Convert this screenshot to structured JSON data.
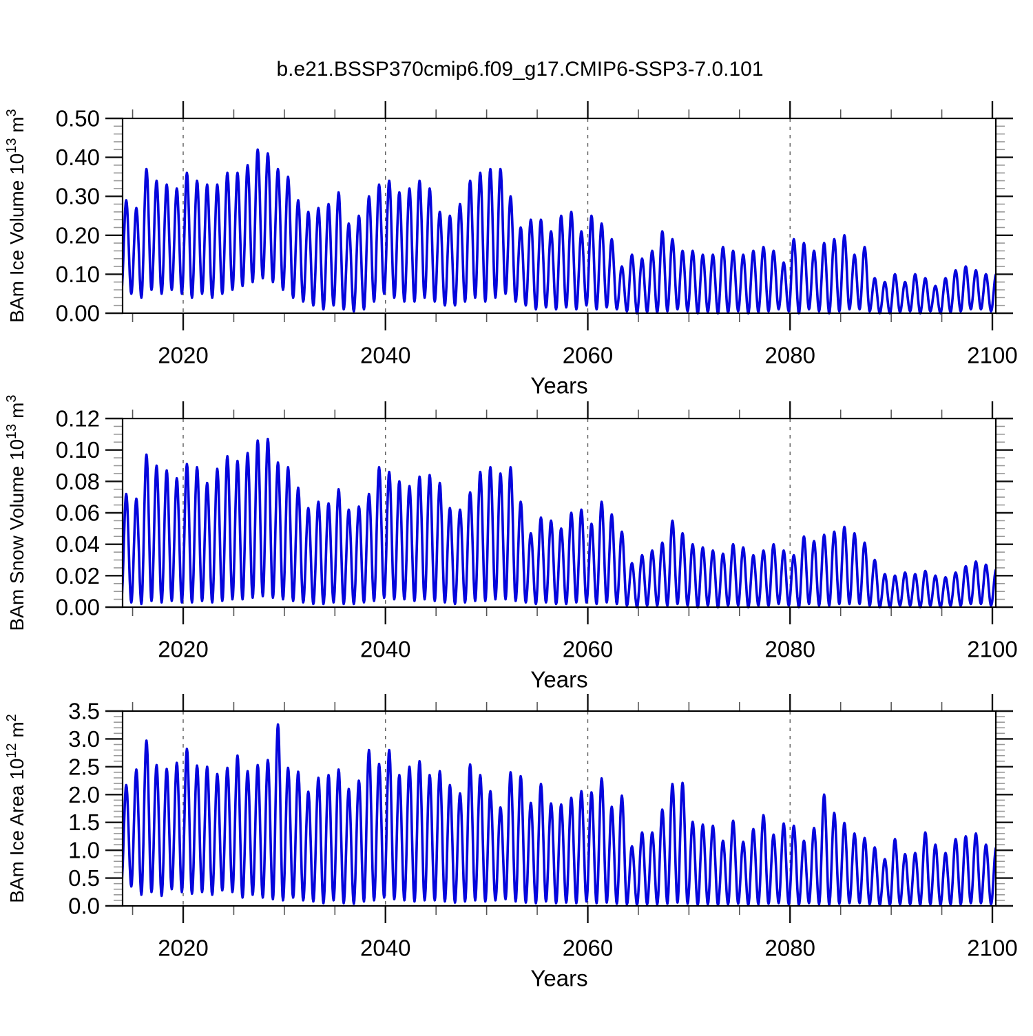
{
  "title": "b.e21.BSSP370cmip6.f09_g17.CMIP6-SSP3-7.0.101",
  "line_color": "#0505DC",
  "gridline_color": "#5a5a5a",
  "chart_data": [
    {
      "type": "line",
      "name": "ice-volume",
      "title": "BAm Ice Volume 10^13 m^3",
      "ylabel_segments": [
        [
          "BAm Ice Volume 10",
          "n"
        ],
        [
          "13",
          "s"
        ],
        [
          " m",
          "n"
        ],
        [
          "3",
          "s"
        ]
      ],
      "ylim": [
        0.0,
        0.5
      ],
      "y_ticks": [
        0.0,
        0.1,
        0.2,
        0.3,
        0.4,
        0.5
      ],
      "y_tick_labels": [
        "0.00",
        "0.10",
        "0.20",
        "0.30",
        "0.40",
        "0.50"
      ],
      "y_minor_step": 0.02,
      "x": {
        "label": "Years",
        "lim": [
          2014.0,
          2100.35
        ],
        "ticks": [
          2020,
          2040,
          2060,
          2080,
          2100
        ],
        "tick_labels": [
          "2020",
          "2040",
          "2060",
          "2080",
          "2100"
        ],
        "minor_step": 5,
        "gridlines": [
          2020,
          2040,
          2060,
          2080
        ],
        "grid_style": "dashed"
      },
      "series": {
        "description": "monthly seasonal cycle; spring maxima and autumn minima per year",
        "years": [
          2014,
          2015,
          2016,
          2017,
          2018,
          2019,
          2020,
          2021,
          2022,
          2023,
          2024,
          2025,
          2026,
          2027,
          2028,
          2029,
          2030,
          2031,
          2032,
          2033,
          2034,
          2035,
          2036,
          2037,
          2038,
          2039,
          2040,
          2041,
          2042,
          2043,
          2044,
          2045,
          2046,
          2047,
          2048,
          2049,
          2050,
          2051,
          2052,
          2053,
          2054,
          2055,
          2056,
          2057,
          2058,
          2059,
          2060,
          2061,
          2062,
          2063,
          2064,
          2065,
          2066,
          2067,
          2068,
          2069,
          2070,
          2071,
          2072,
          2073,
          2074,
          2075,
          2076,
          2077,
          2078,
          2079,
          2080,
          2081,
          2082,
          2083,
          2084,
          2085,
          2086,
          2087,
          2088,
          2089,
          2090,
          2091,
          2092,
          2093,
          2094,
          2095,
          2096,
          2097,
          2098,
          2099,
          2100
        ],
        "spring_max": [
          0.29,
          0.27,
          0.37,
          0.34,
          0.33,
          0.32,
          0.36,
          0.34,
          0.33,
          0.33,
          0.36,
          0.36,
          0.38,
          0.42,
          0.41,
          0.37,
          0.35,
          0.29,
          0.26,
          0.27,
          0.28,
          0.31,
          0.23,
          0.25,
          0.3,
          0.33,
          0.34,
          0.31,
          0.32,
          0.34,
          0.32,
          0.26,
          0.25,
          0.28,
          0.34,
          0.36,
          0.37,
          0.37,
          0.3,
          0.22,
          0.24,
          0.24,
          0.21,
          0.25,
          0.26,
          0.21,
          0.25,
          0.23,
          0.19,
          0.12,
          0.15,
          0.14,
          0.16,
          0.21,
          0.19,
          0.16,
          0.16,
          0.15,
          0.15,
          0.17,
          0.16,
          0.15,
          0.16,
          0.17,
          0.16,
          0.13,
          0.19,
          0.18,
          0.16,
          0.18,
          0.19,
          0.2,
          0.15,
          0.17,
          0.09,
          0.08,
          0.1,
          0.08,
          0.1,
          0.09,
          0.07,
          0.09,
          0.11,
          0.12,
          0.11,
          0.1,
          0.1
        ],
        "autumn_min": [
          0.05,
          0.04,
          0.06,
          0.05,
          0.06,
          0.05,
          0.04,
          0.05,
          0.04,
          0.05,
          0.06,
          0.07,
          0.08,
          0.09,
          0.08,
          0.06,
          0.04,
          0.03,
          0.02,
          0.01,
          0.02,
          0.01,
          0.005,
          0.01,
          0.03,
          0.05,
          0.04,
          0.03,
          0.03,
          0.04,
          0.03,
          0.02,
          0.02,
          0.03,
          0.04,
          0.03,
          0.04,
          0.05,
          0.03,
          0.02,
          0.01,
          0.015,
          0.01,
          0.015,
          0.01,
          0.02,
          0.01,
          0.015,
          0.01,
          0.005,
          0.0,
          0.003,
          0.002,
          0.005,
          0.01,
          0.005,
          0.0,
          0.003,
          0.0,
          0.002,
          0.005,
          0.0,
          0.003,
          0.005,
          0.01,
          0.005,
          0.0,
          0.01,
          0.005,
          0.0,
          0.005,
          0.01,
          0.01,
          0.005,
          0.0,
          0.0,
          0.003,
          0.005,
          0.0,
          0.005,
          0.0,
          0.003,
          0.005,
          0.01,
          0.01,
          0.005,
          0.01
        ]
      }
    },
    {
      "type": "line",
      "name": "snow-volume",
      "title": "BAm Snow Volume 10^13 m^3",
      "ylabel_segments": [
        [
          "BAm Snow Volume 10",
          "n"
        ],
        [
          "13",
          "s"
        ],
        [
          " m",
          "n"
        ],
        [
          "3",
          "s"
        ]
      ],
      "ylim": [
        0.0,
        0.12
      ],
      "y_ticks": [
        0.0,
        0.02,
        0.04,
        0.06,
        0.08,
        0.1,
        0.12
      ],
      "y_tick_labels": [
        "0.00",
        "0.02",
        "0.04",
        "0.06",
        "0.08",
        "0.10",
        "0.12"
      ],
      "y_minor_step": 0.005,
      "x": {
        "label": "Years",
        "lim": [
          2014.0,
          2100.35
        ],
        "ticks": [
          2020,
          2040,
          2060,
          2080,
          2100
        ],
        "tick_labels": [
          "2020",
          "2040",
          "2060",
          "2080",
          "2100"
        ],
        "minor_step": 5,
        "gridlines": [
          2020,
          2040,
          2060,
          2080
        ],
        "grid_style": "dashed"
      },
      "series": {
        "description": "monthly seasonal cycle; spring maxima and autumn minima per year",
        "years": [
          2014,
          2015,
          2016,
          2017,
          2018,
          2019,
          2020,
          2021,
          2022,
          2023,
          2024,
          2025,
          2026,
          2027,
          2028,
          2029,
          2030,
          2031,
          2032,
          2033,
          2034,
          2035,
          2036,
          2037,
          2038,
          2039,
          2040,
          2041,
          2042,
          2043,
          2044,
          2045,
          2046,
          2047,
          2048,
          2049,
          2050,
          2051,
          2052,
          2053,
          2054,
          2055,
          2056,
          2057,
          2058,
          2059,
          2060,
          2061,
          2062,
          2063,
          2064,
          2065,
          2066,
          2067,
          2068,
          2069,
          2070,
          2071,
          2072,
          2073,
          2074,
          2075,
          2076,
          2077,
          2078,
          2079,
          2080,
          2081,
          2082,
          2083,
          2084,
          2085,
          2086,
          2087,
          2088,
          2089,
          2090,
          2091,
          2092,
          2093,
          2094,
          2095,
          2096,
          2097,
          2098,
          2099,
          2100
        ],
        "spring_max": [
          0.072,
          0.069,
          0.097,
          0.09,
          0.087,
          0.082,
          0.091,
          0.089,
          0.079,
          0.088,
          0.096,
          0.093,
          0.098,
          0.106,
          0.107,
          0.092,
          0.089,
          0.076,
          0.063,
          0.067,
          0.066,
          0.075,
          0.062,
          0.064,
          0.072,
          0.089,
          0.086,
          0.08,
          0.077,
          0.083,
          0.084,
          0.079,
          0.063,
          0.062,
          0.073,
          0.086,
          0.089,
          0.085,
          0.089,
          0.067,
          0.047,
          0.057,
          0.055,
          0.05,
          0.06,
          0.062,
          0.053,
          0.067,
          0.059,
          0.048,
          0.028,
          0.033,
          0.036,
          0.041,
          0.055,
          0.047,
          0.04,
          0.038,
          0.036,
          0.034,
          0.04,
          0.038,
          0.033,
          0.036,
          0.04,
          0.036,
          0.033,
          0.045,
          0.042,
          0.046,
          0.048,
          0.051,
          0.047,
          0.041,
          0.03,
          0.021,
          0.02,
          0.022,
          0.021,
          0.023,
          0.02,
          0.019,
          0.022,
          0.026,
          0.029,
          0.027,
          0.024
        ],
        "autumn_min": [
          0.003,
          0.002,
          0.004,
          0.003,
          0.004,
          0.003,
          0.003,
          0.004,
          0.003,
          0.004,
          0.005,
          0.005,
          0.006,
          0.007,
          0.006,
          0.005,
          0.004,
          0.003,
          0.002,
          0.002,
          0.003,
          0.002,
          0.002,
          0.003,
          0.004,
          0.006,
          0.005,
          0.005,
          0.004,
          0.005,
          0.004,
          0.003,
          0.002,
          0.003,
          0.004,
          0.004,
          0.005,
          0.005,
          0.004,
          0.003,
          0.002,
          0.003,
          0.002,
          0.002,
          0.003,
          0.003,
          0.002,
          0.003,
          0.002,
          0.001,
          0.0,
          0.001,
          0.001,
          0.001,
          0.002,
          0.001,
          0.0,
          0.001,
          0.0,
          0.001,
          0.001,
          0.0,
          0.001,
          0.001,
          0.002,
          0.001,
          0.0,
          0.002,
          0.001,
          0.001,
          0.002,
          0.002,
          0.002,
          0.001,
          0.0,
          0.0,
          0.001,
          0.001,
          0.0,
          0.001,
          0.0,
          0.001,
          0.001,
          0.002,
          0.002,
          0.001,
          0.002
        ]
      }
    },
    {
      "type": "line",
      "name": "ice-area",
      "title": "BAm Ice Area 10^12 m^2",
      "ylabel_segments": [
        [
          "BAm Ice Area 10",
          "n"
        ],
        [
          "12",
          "s"
        ],
        [
          " m",
          "n"
        ],
        [
          "2",
          "s"
        ]
      ],
      "ylim": [
        0.0,
        3.5
      ],
      "y_ticks": [
        0.0,
        0.5,
        1.0,
        1.5,
        2.0,
        2.5,
        3.0,
        3.5
      ],
      "y_tick_labels": [
        "0.0",
        "0.5",
        "1.0",
        "1.5",
        "2.0",
        "2.5",
        "3.0",
        "3.5"
      ],
      "y_minor_step": 0.1,
      "x": {
        "label": "Years",
        "lim": [
          2014.0,
          2100.35
        ],
        "ticks": [
          2020,
          2040,
          2060,
          2080,
          2100
        ],
        "tick_labels": [
          "2020",
          "2040",
          "2060",
          "2080",
          "2100"
        ],
        "minor_step": 5,
        "gridlines": [
          2020,
          2040,
          2060,
          2080
        ],
        "grid_style": "dashed"
      },
      "series": {
        "description": "monthly seasonal cycle; spring maxima and autumn minima per year",
        "years": [
          2014,
          2015,
          2016,
          2017,
          2018,
          2019,
          2020,
          2021,
          2022,
          2023,
          2024,
          2025,
          2026,
          2027,
          2028,
          2029,
          2030,
          2031,
          2032,
          2033,
          2034,
          2035,
          2036,
          2037,
          2038,
          2039,
          2040,
          2041,
          2042,
          2043,
          2044,
          2045,
          2046,
          2047,
          2048,
          2049,
          2050,
          2051,
          2052,
          2053,
          2054,
          2055,
          2056,
          2057,
          2058,
          2059,
          2060,
          2061,
          2062,
          2063,
          2064,
          2065,
          2066,
          2067,
          2068,
          2069,
          2070,
          2071,
          2072,
          2073,
          2074,
          2075,
          2076,
          2077,
          2078,
          2079,
          2080,
          2081,
          2082,
          2083,
          2084,
          2085,
          2086,
          2087,
          2088,
          2089,
          2090,
          2091,
          2092,
          2093,
          2094,
          2095,
          2096,
          2097,
          2098,
          2099,
          2100
        ],
        "spring_max": [
          2.17,
          2.45,
          2.97,
          2.53,
          2.46,
          2.57,
          2.82,
          2.52,
          2.5,
          2.37,
          2.48,
          2.7,
          2.42,
          2.53,
          2.62,
          3.26,
          2.48,
          2.41,
          2.05,
          2.3,
          2.35,
          2.45,
          2.1,
          2.25,
          2.8,
          2.55,
          2.8,
          2.35,
          2.5,
          2.6,
          2.35,
          2.42,
          2.17,
          2.02,
          2.54,
          2.35,
          2.06,
          1.77,
          2.4,
          2.33,
          1.85,
          2.19,
          1.84,
          1.82,
          1.94,
          2.06,
          2.04,
          2.29,
          1.78,
          1.98,
          1.07,
          1.32,
          1.32,
          1.73,
          2.19,
          2.21,
          1.51,
          1.46,
          1.44,
          1.17,
          1.53,
          1.15,
          1.38,
          1.63,
          1.28,
          1.48,
          1.44,
          1.17,
          1.4,
          2.0,
          1.67,
          1.49,
          1.3,
          1.22,
          1.05,
          0.84,
          1.2,
          0.93,
          0.95,
          1.32,
          1.1,
          0.95,
          1.2,
          1.25,
          1.3,
          1.1,
          1.05
        ],
        "autumn_min": [
          0.35,
          0.2,
          0.25,
          0.18,
          0.3,
          0.25,
          0.22,
          0.25,
          0.2,
          0.28,
          0.25,
          0.15,
          0.2,
          0.15,
          0.12,
          0.1,
          0.15,
          0.1,
          0.08,
          0.05,
          0.1,
          0.05,
          0.04,
          0.08,
          0.1,
          0.15,
          0.12,
          0.1,
          0.08,
          0.1,
          0.1,
          0.08,
          0.06,
          0.08,
          0.1,
          0.08,
          0.1,
          0.12,
          0.08,
          0.06,
          0.05,
          0.08,
          0.05,
          0.06,
          0.05,
          0.08,
          0.05,
          0.06,
          0.04,
          0.03,
          0.02,
          0.03,
          0.03,
          0.04,
          0.06,
          0.04,
          0.02,
          0.03,
          0.02,
          0.03,
          0.04,
          0.02,
          0.03,
          0.04,
          0.05,
          0.03,
          0.02,
          0.05,
          0.03,
          0.02,
          0.04,
          0.05,
          0.05,
          0.03,
          0.02,
          0.02,
          0.03,
          0.03,
          0.02,
          0.03,
          0.02,
          0.03,
          0.03,
          0.05,
          0.05,
          0.03,
          0.04
        ]
      }
    }
  ]
}
